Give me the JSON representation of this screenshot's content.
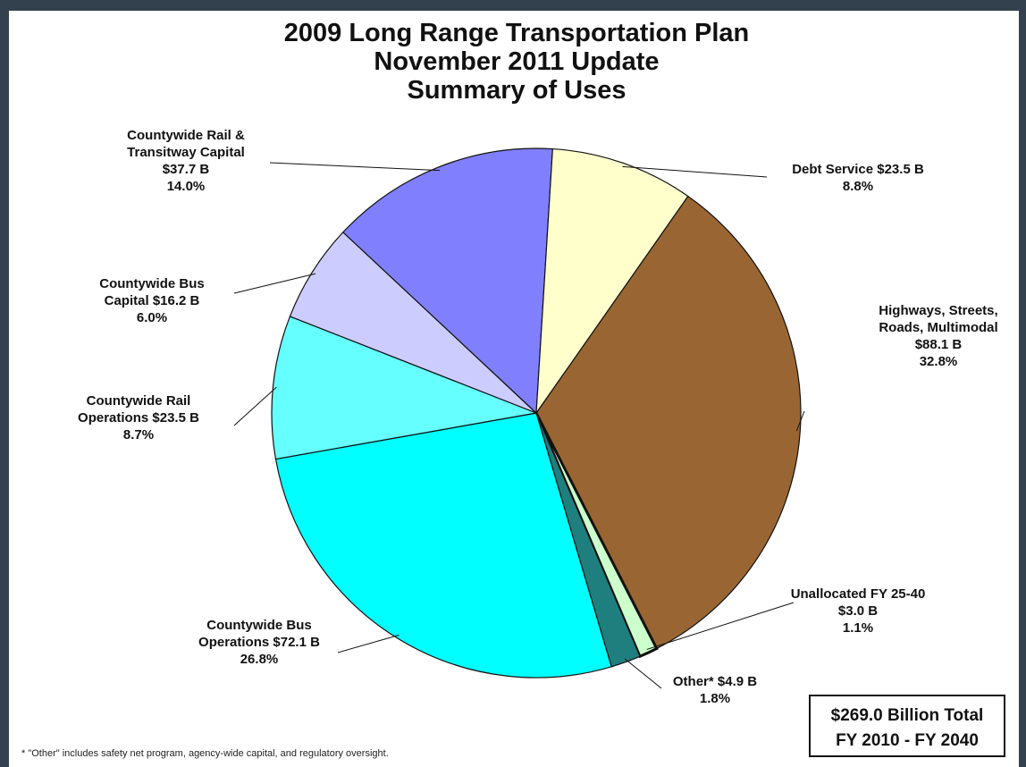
{
  "chart_data": {
    "type": "pie",
    "title": [
      "2009 Long Range Transportation Plan",
      "November 2011 Update",
      "Summary of Uses"
    ],
    "slices": [
      {
        "key": "highways",
        "value": 88.1,
        "percent": 32.8,
        "color": "#996633",
        "label": [
          "Highways, Streets,",
          "Roads, Multimodal",
          "$88.1 B",
          "32.8%"
        ]
      },
      {
        "key": "unallocated",
        "value": 3.0,
        "percent": 1.1,
        "color": "#ccffcc",
        "label": [
          "Unallocated FY 25-40",
          "$3.0 B",
          "1.1%"
        ]
      },
      {
        "key": "other",
        "value": 4.9,
        "percent": 1.8,
        "color": "#1f7f7f",
        "label": [
          "Other*  $4.9 B",
          "1.8%"
        ]
      },
      {
        "key": "bus_ops",
        "value": 72.1,
        "percent": 26.8,
        "color": "#00ffff",
        "label": [
          "Countywide Bus",
          "Operations  $72.1 B",
          "26.8%"
        ]
      },
      {
        "key": "rail_ops",
        "value": 23.5,
        "percent": 8.7,
        "color": "#66ffff",
        "label": [
          "Countywide Rail",
          "Operations  $23.5 B",
          "8.7%"
        ]
      },
      {
        "key": "bus_capital",
        "value": 16.2,
        "percent": 6.0,
        "color": "#ccccff",
        "label": [
          "Countywide Bus",
          "Capital    $16.2 B",
          "6.0%"
        ]
      },
      {
        "key": "rail_capital",
        "value": 37.7,
        "percent": 14.0,
        "color": "#8080ff",
        "label": [
          "Countywide Rail &",
          "Transitway Capital",
          "$37.7 B",
          "14.0%"
        ]
      },
      {
        "key": "debt",
        "value": 23.5,
        "percent": 8.8,
        "color": "#ffffcc",
        "label": [
          "Debt Service   $23.5 B",
          "8.8%"
        ]
      }
    ],
    "total_box": [
      "$269.0 Billion Total",
      "FY 2010 - FY 2040"
    ],
    "footnote": "* \"Other\" includes safety net program, agency-wide capital, and regulatory oversight."
  }
}
